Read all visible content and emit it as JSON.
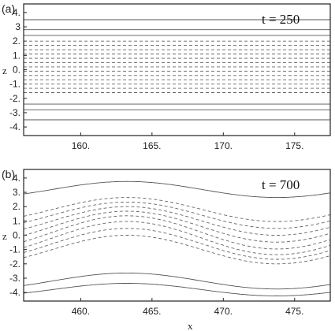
{
  "chart_data": [
    {
      "type": "contour",
      "panel_label": "(a)",
      "annotation": "t = 250",
      "ylabel": "z",
      "xlabel": "",
      "xlim": [
        156,
        177.5
      ],
      "ylim": [
        -4.6,
        4.6
      ],
      "xticks": [
        160,
        165,
        170,
        175
      ],
      "xtick_labels": [
        "160.",
        "165.",
        "170.",
        "175."
      ],
      "yticks": [
        4,
        3,
        2,
        1,
        0,
        -1,
        -2,
        -3,
        -4
      ],
      "ytick_labels": [
        "4.",
        "3",
        "2.",
        "1.",
        "0.",
        "-1.",
        "-2.",
        "-3.",
        "-4."
      ],
      "solid_levels_z": [
        3.5,
        2.8,
        2.4,
        -2.4,
        -2.8,
        -3.5
      ],
      "dashed_levels_z": [
        2.0,
        1.7,
        1.4,
        1.1,
        0.8,
        0.5,
        0.2,
        -0.1,
        -0.4,
        -0.7,
        -1.0,
        -1.3,
        -1.6
      ]
    },
    {
      "type": "contour",
      "panel_label": "(b)",
      "annotation": "t = 700",
      "ylabel": "z",
      "xlabel": "x",
      "xlim": [
        456,
        477.5
      ],
      "ylim": [
        -4.6,
        4.6
      ],
      "xticks": [
        460,
        465,
        470,
        475
      ],
      "xtick_labels": [
        "460.",
        "465.",
        "470.",
        "475."
      ],
      "yticks": [
        4,
        3,
        2,
        1,
        0,
        -1,
        -2,
        -3,
        -4
      ],
      "ytick_labels": [
        "4.",
        "3.",
        "2.",
        "1.",
        "0.",
        "-1.",
        "-2.",
        "-3.",
        "-4."
      ],
      "wave_center": 468.5,
      "wave_amplitude": 1.2,
      "wave_wavelength": 21,
      "solid_levels_z": [
        3.2,
        -3.2,
        -3.8
      ],
      "dashed_levels_z": [
        1.8,
        1.4,
        1.0,
        0.6,
        0.2,
        -0.2,
        -0.6,
        -1.0
      ]
    }
  ]
}
